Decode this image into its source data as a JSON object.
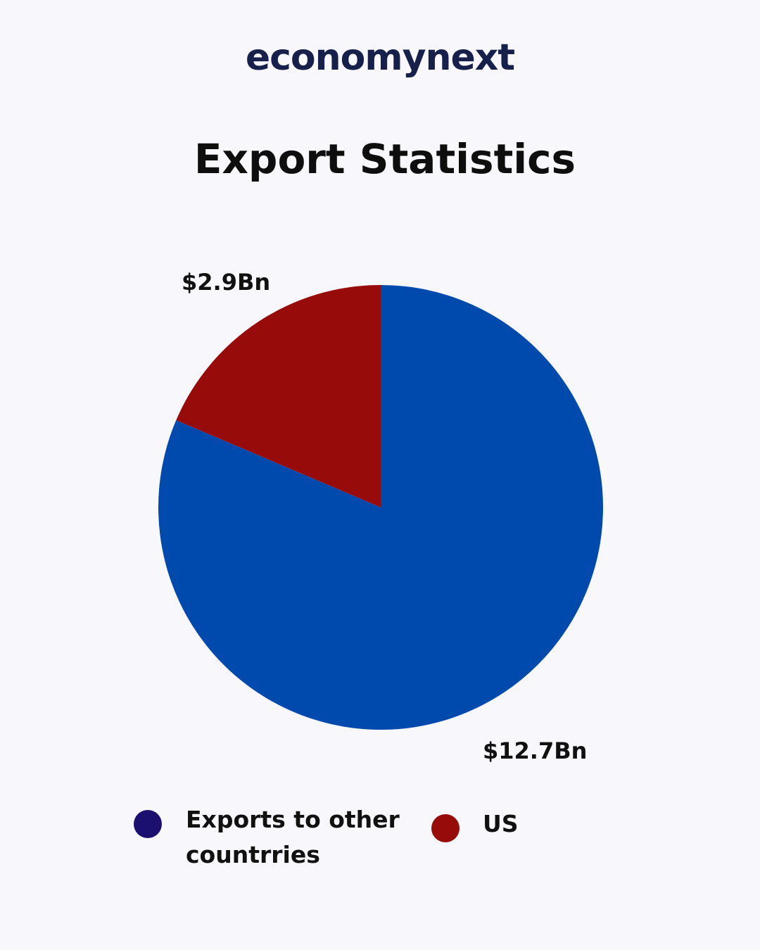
{
  "brand": {
    "logo_text": "economynext",
    "color": "#16204a"
  },
  "chart_data": {
    "type": "pie",
    "title": "Export Statistics",
    "slices": [
      {
        "name": "Exports to other countrries",
        "value": 12.7,
        "label": "$12.7Bn",
        "color": "#004aad"
      },
      {
        "name": "US",
        "value": 2.9,
        "label": "$2.9Bn",
        "color": "#980b0b"
      }
    ],
    "legend": {
      "placement": "bottom",
      "items": [
        {
          "label": "Exports to other countrries",
          "color": "#1b1070"
        },
        {
          "label": "US",
          "color": "#980b0b"
        }
      ]
    }
  }
}
